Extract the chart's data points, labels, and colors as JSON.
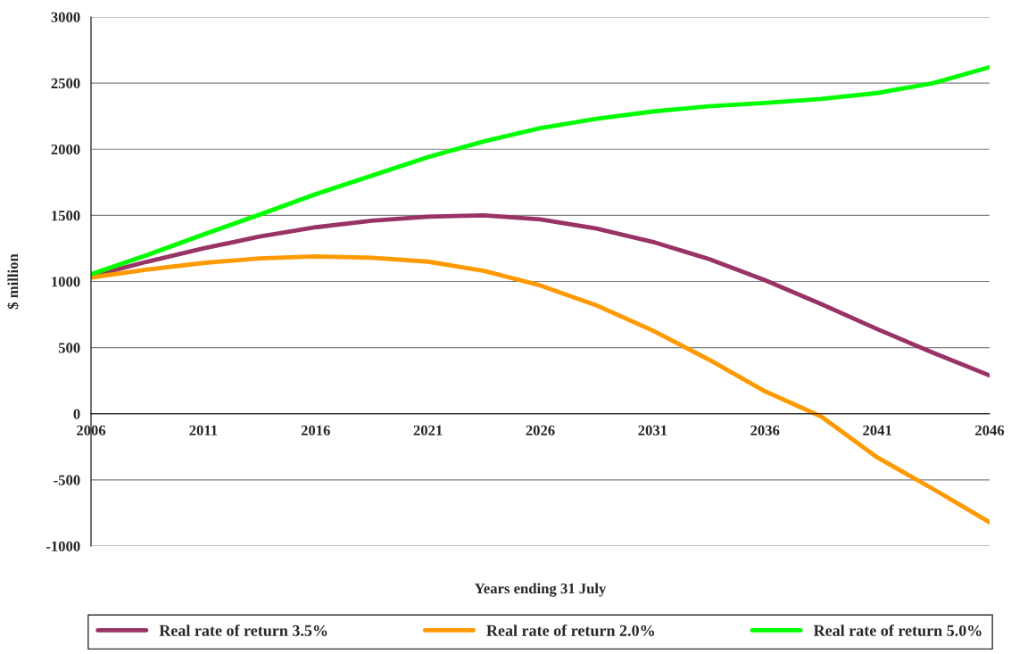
{
  "chart_data": {
    "type": "line",
    "xlabel": "Years ending 31 July",
    "ylabel": "$ million",
    "xlim": [
      2006,
      2046
    ],
    "xticks": [
      2006,
      2011,
      2016,
      2021,
      2026,
      2031,
      2036,
      2041,
      2046
    ],
    "ylim": [
      -1000,
      3000
    ],
    "yticks": [
      -1000,
      -500,
      0,
      500,
      1000,
      1500,
      2000,
      2500,
      3000
    ],
    "grid": "y",
    "legend": "bottom",
    "marker": "none",
    "line_style": "solid",
    "series": [
      {
        "name": "Real rate of return 3.5%",
        "color": "#993366",
        "x": [
          2006,
          2008.5,
          2011,
          2013.5,
          2016,
          2018.5,
          2021,
          2023.5,
          2026,
          2028.5,
          2031,
          2033.5,
          2036,
          2038.5,
          2041,
          2043.5,
          2046
        ],
        "values": [
          1040,
          1150,
          1250,
          1340,
          1410,
          1460,
          1490,
          1500,
          1470,
          1400,
          1300,
          1170,
          1010,
          830,
          640,
          460,
          290
        ]
      },
      {
        "name": "Real rate of return 2.0%",
        "color": "#ff9900",
        "x": [
          2006,
          2008.5,
          2011,
          2013.5,
          2016,
          2018.5,
          2021,
          2023.5,
          2026,
          2028.5,
          2031,
          2033.5,
          2036,
          2038.5,
          2041,
          2043.5,
          2046
        ],
        "values": [
          1030,
          1090,
          1140,
          1175,
          1190,
          1180,
          1150,
          1080,
          970,
          820,
          630,
          410,
          170,
          -20,
          -330,
          -570,
          -820
        ]
      },
      {
        "name": "Real rate of return 5.0%",
        "color": "#00ff00",
        "x": [
          2006,
          2008.5,
          2011,
          2013.5,
          2016,
          2018.5,
          2021,
          2023.5,
          2026,
          2028.5,
          2031,
          2033.5,
          2036,
          2038.5,
          2041,
          2043.5,
          2046
        ],
        "values": [
          1055,
          1200,
          1355,
          1505,
          1660,
          1800,
          1940,
          2060,
          2160,
          2230,
          2285,
          2325,
          2350,
          2380,
          2425,
          2500,
          2620
        ]
      }
    ]
  }
}
